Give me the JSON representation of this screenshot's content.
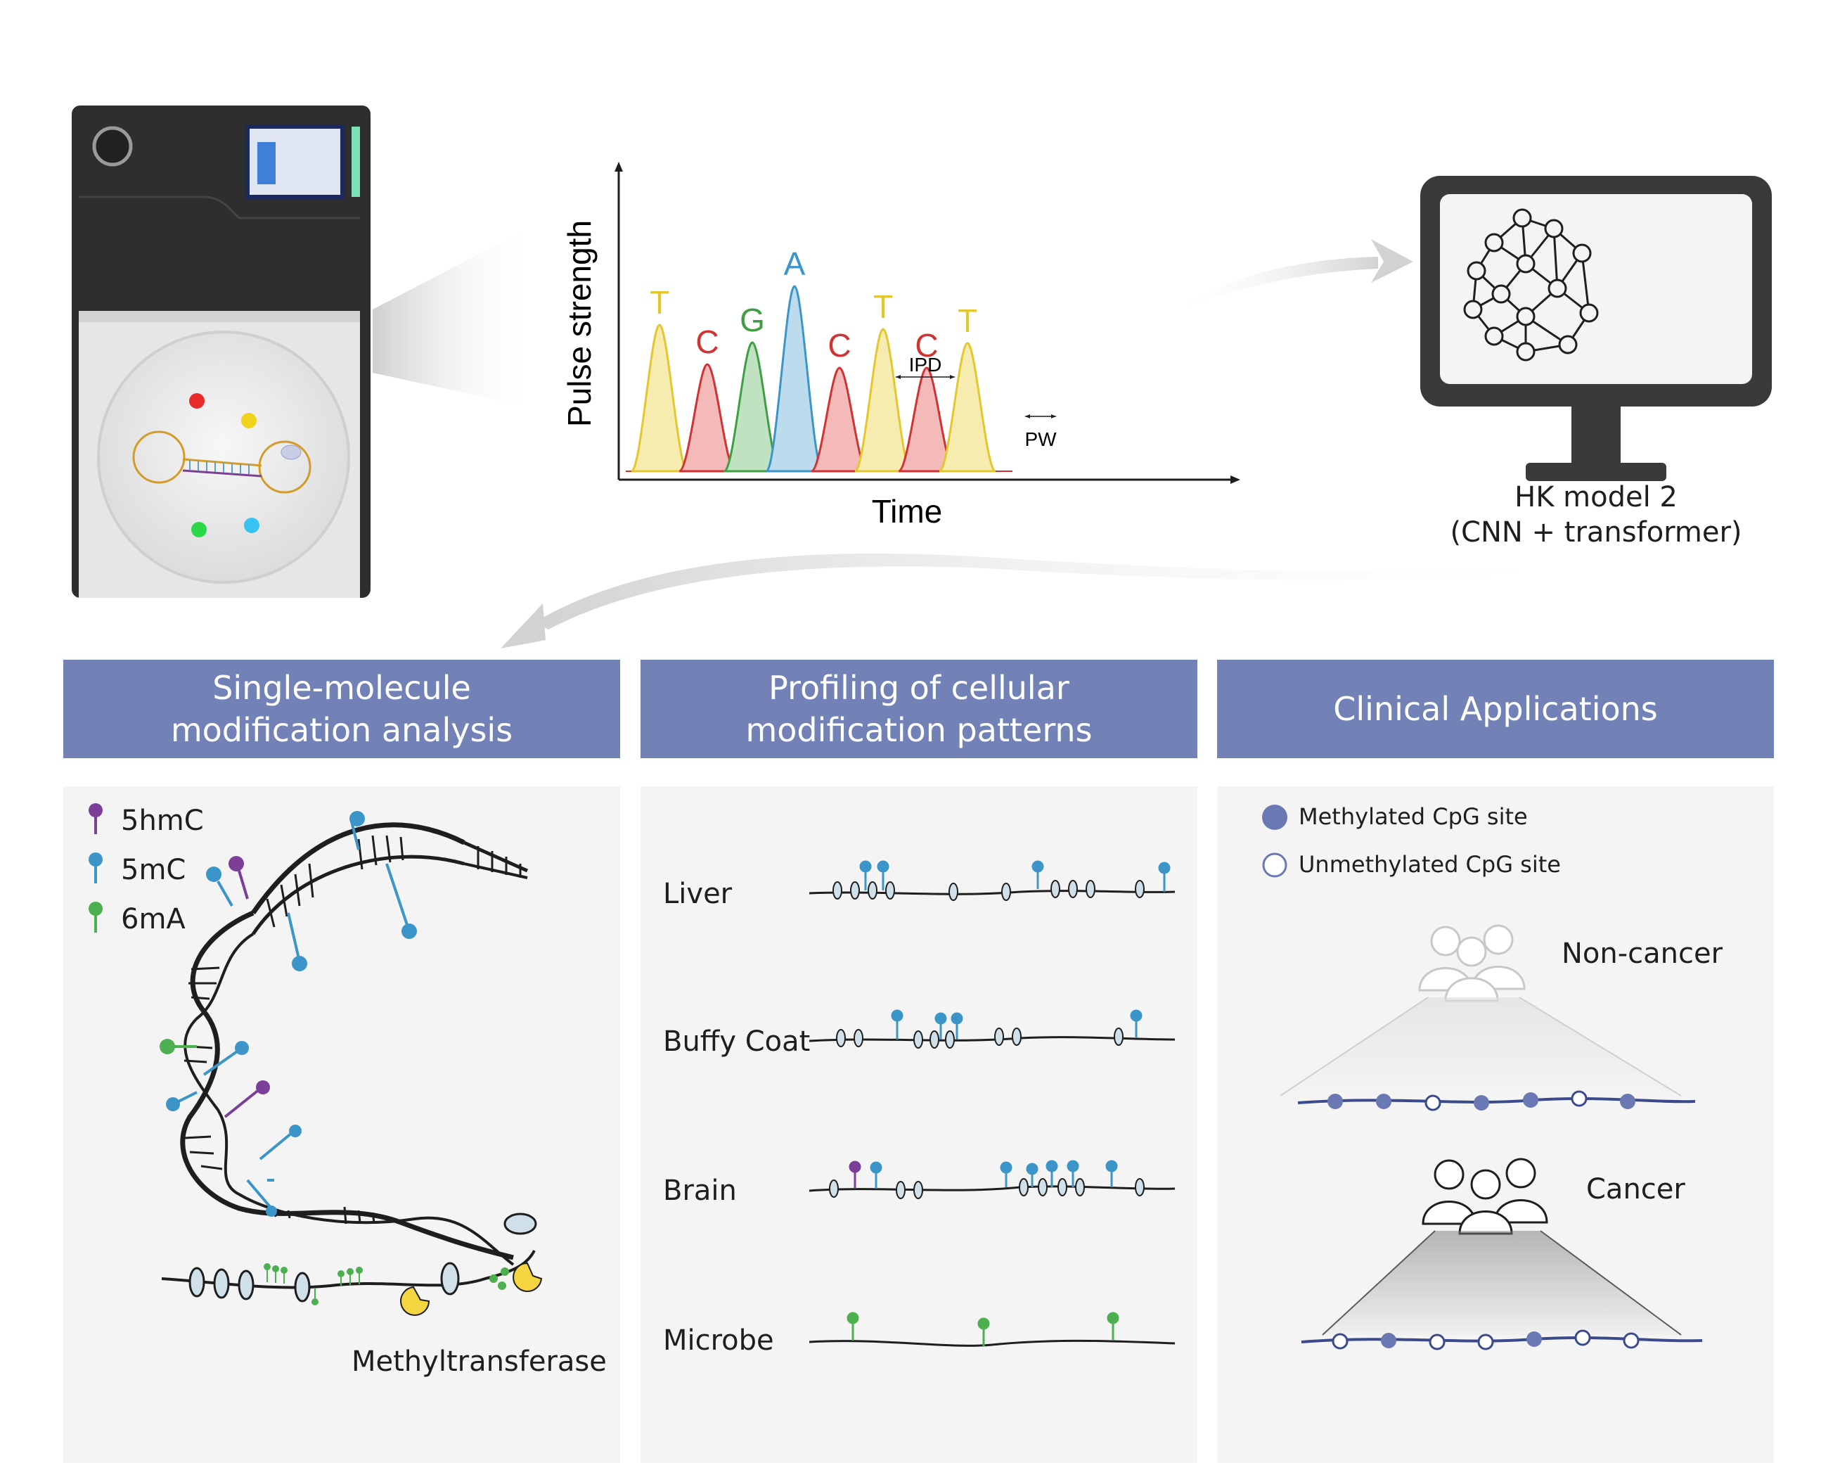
{
  "chromatogram": {
    "y_label": "Pulse strength",
    "x_label": "Time",
    "peaks": [
      {
        "base": "T",
        "color": "#e3c72e"
      },
      {
        "base": "C",
        "color": "#cf3333"
      },
      {
        "base": "G",
        "color": "#3f9e44"
      },
      {
        "base": "A",
        "color": "#3b95c8"
      },
      {
        "base": "C",
        "color": "#cf3333"
      },
      {
        "base": "T",
        "color": "#e3c72e"
      },
      {
        "base": "C",
        "color": "#cf3333"
      },
      {
        "base": "T",
        "color": "#e3c72e"
      }
    ],
    "ipd_label": "IPD",
    "pw_label": "PW"
  },
  "model": {
    "line1": "HK model 2",
    "line2": "(CNN + transformer)"
  },
  "sections": {
    "single_molecule": {
      "line1": "Single-molecule",
      "line2": "modification analysis"
    },
    "profiling": {
      "line1": "Profiling of cellular",
      "line2": "modification patterns"
    },
    "clinical": {
      "title": "Clinical Applications"
    }
  },
  "legend_mods": [
    {
      "label": "5hmC",
      "color": "#7b3f98"
    },
    {
      "label": "5mC",
      "color": "#3b95c8"
    },
    {
      "label": "6mA",
      "color": "#4caf50"
    }
  ],
  "methyltransferase_label": "Methyltransferase",
  "tissues": [
    {
      "label": "Liver"
    },
    {
      "label": "Buffy Coat"
    },
    {
      "label": "Brain"
    },
    {
      "label": "Microbe"
    }
  ],
  "cpg_legend": {
    "methylated": "Methylated CpG site",
    "unmethylated": "Unmethylated CpG site",
    "filled_color": "#6a79b3"
  },
  "groups": {
    "non_cancer": "Non-cancer",
    "cancer": "Cancer"
  },
  "colors": {
    "banner": "#7282b7",
    "panel": "#f4f4f4",
    "strand": "#1e1e1e",
    "cpg_line": "#3a4a8c"
  }
}
